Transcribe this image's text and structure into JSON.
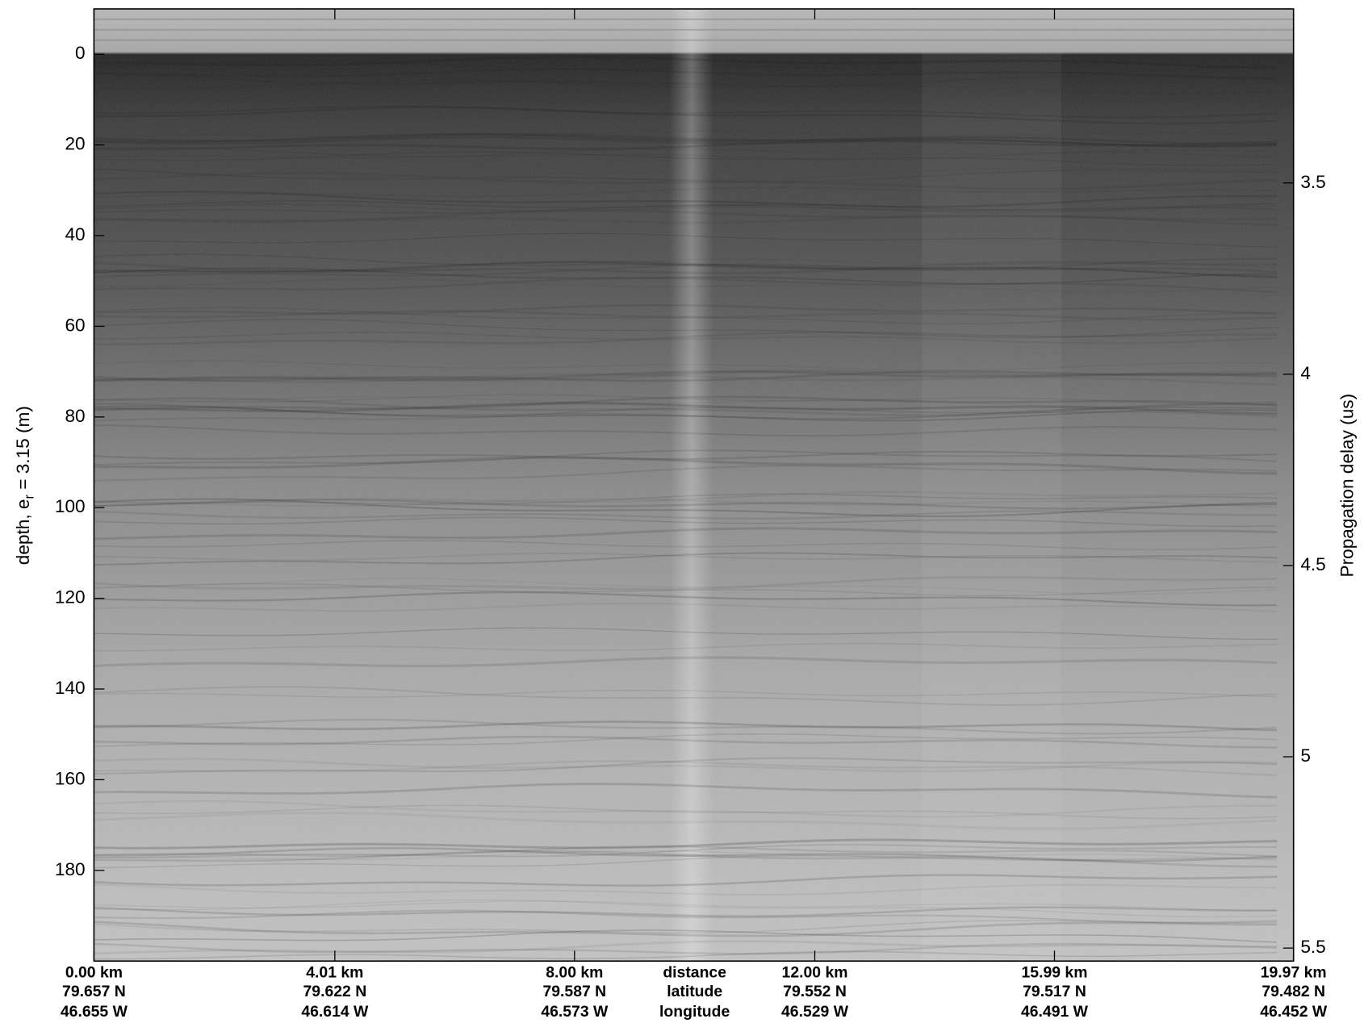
{
  "chart_data": {
    "type": "echogram",
    "ylim": [
      -10,
      200
    ],
    "yticks": [
      0,
      20,
      40,
      60,
      80,
      100,
      120,
      140,
      160,
      180
    ],
    "y_label": [
      "depth, e",
      "r",
      " = 3.15 (m)"
    ],
    "y2lim": [
      3.045,
      5.534
    ],
    "y2ticks": [
      3.5,
      4,
      4.5,
      5,
      5.5
    ],
    "y2_label": "Propagation delay (us)",
    "xlim": [
      0,
      19.97
    ],
    "xticks": [
      {
        "value": 0,
        "label": "0.00 km"
      },
      {
        "value": 4.01,
        "label": "4.01 km"
      },
      {
        "value": 8,
        "label": "8.00 km"
      },
      {
        "value": 12,
        "label": "12.00 km"
      },
      {
        "value": 15.99,
        "label": "15.99 km"
      },
      {
        "value": 19.97,
        "label": "19.97 km"
      }
    ],
    "latitude_labels": [
      "79.657 N",
      "79.622 N",
      "79.587 N",
      "79.552 N",
      "79.517 N",
      "79.482 N"
    ],
    "longitude_labels": [
      "46.655 W",
      "46.614 W",
      "46.573 W",
      "46.529 W",
      "46.491 W",
      "46.452 W"
    ],
    "x_row_names": [
      "distance",
      "latitude",
      "longitude"
    ]
  }
}
